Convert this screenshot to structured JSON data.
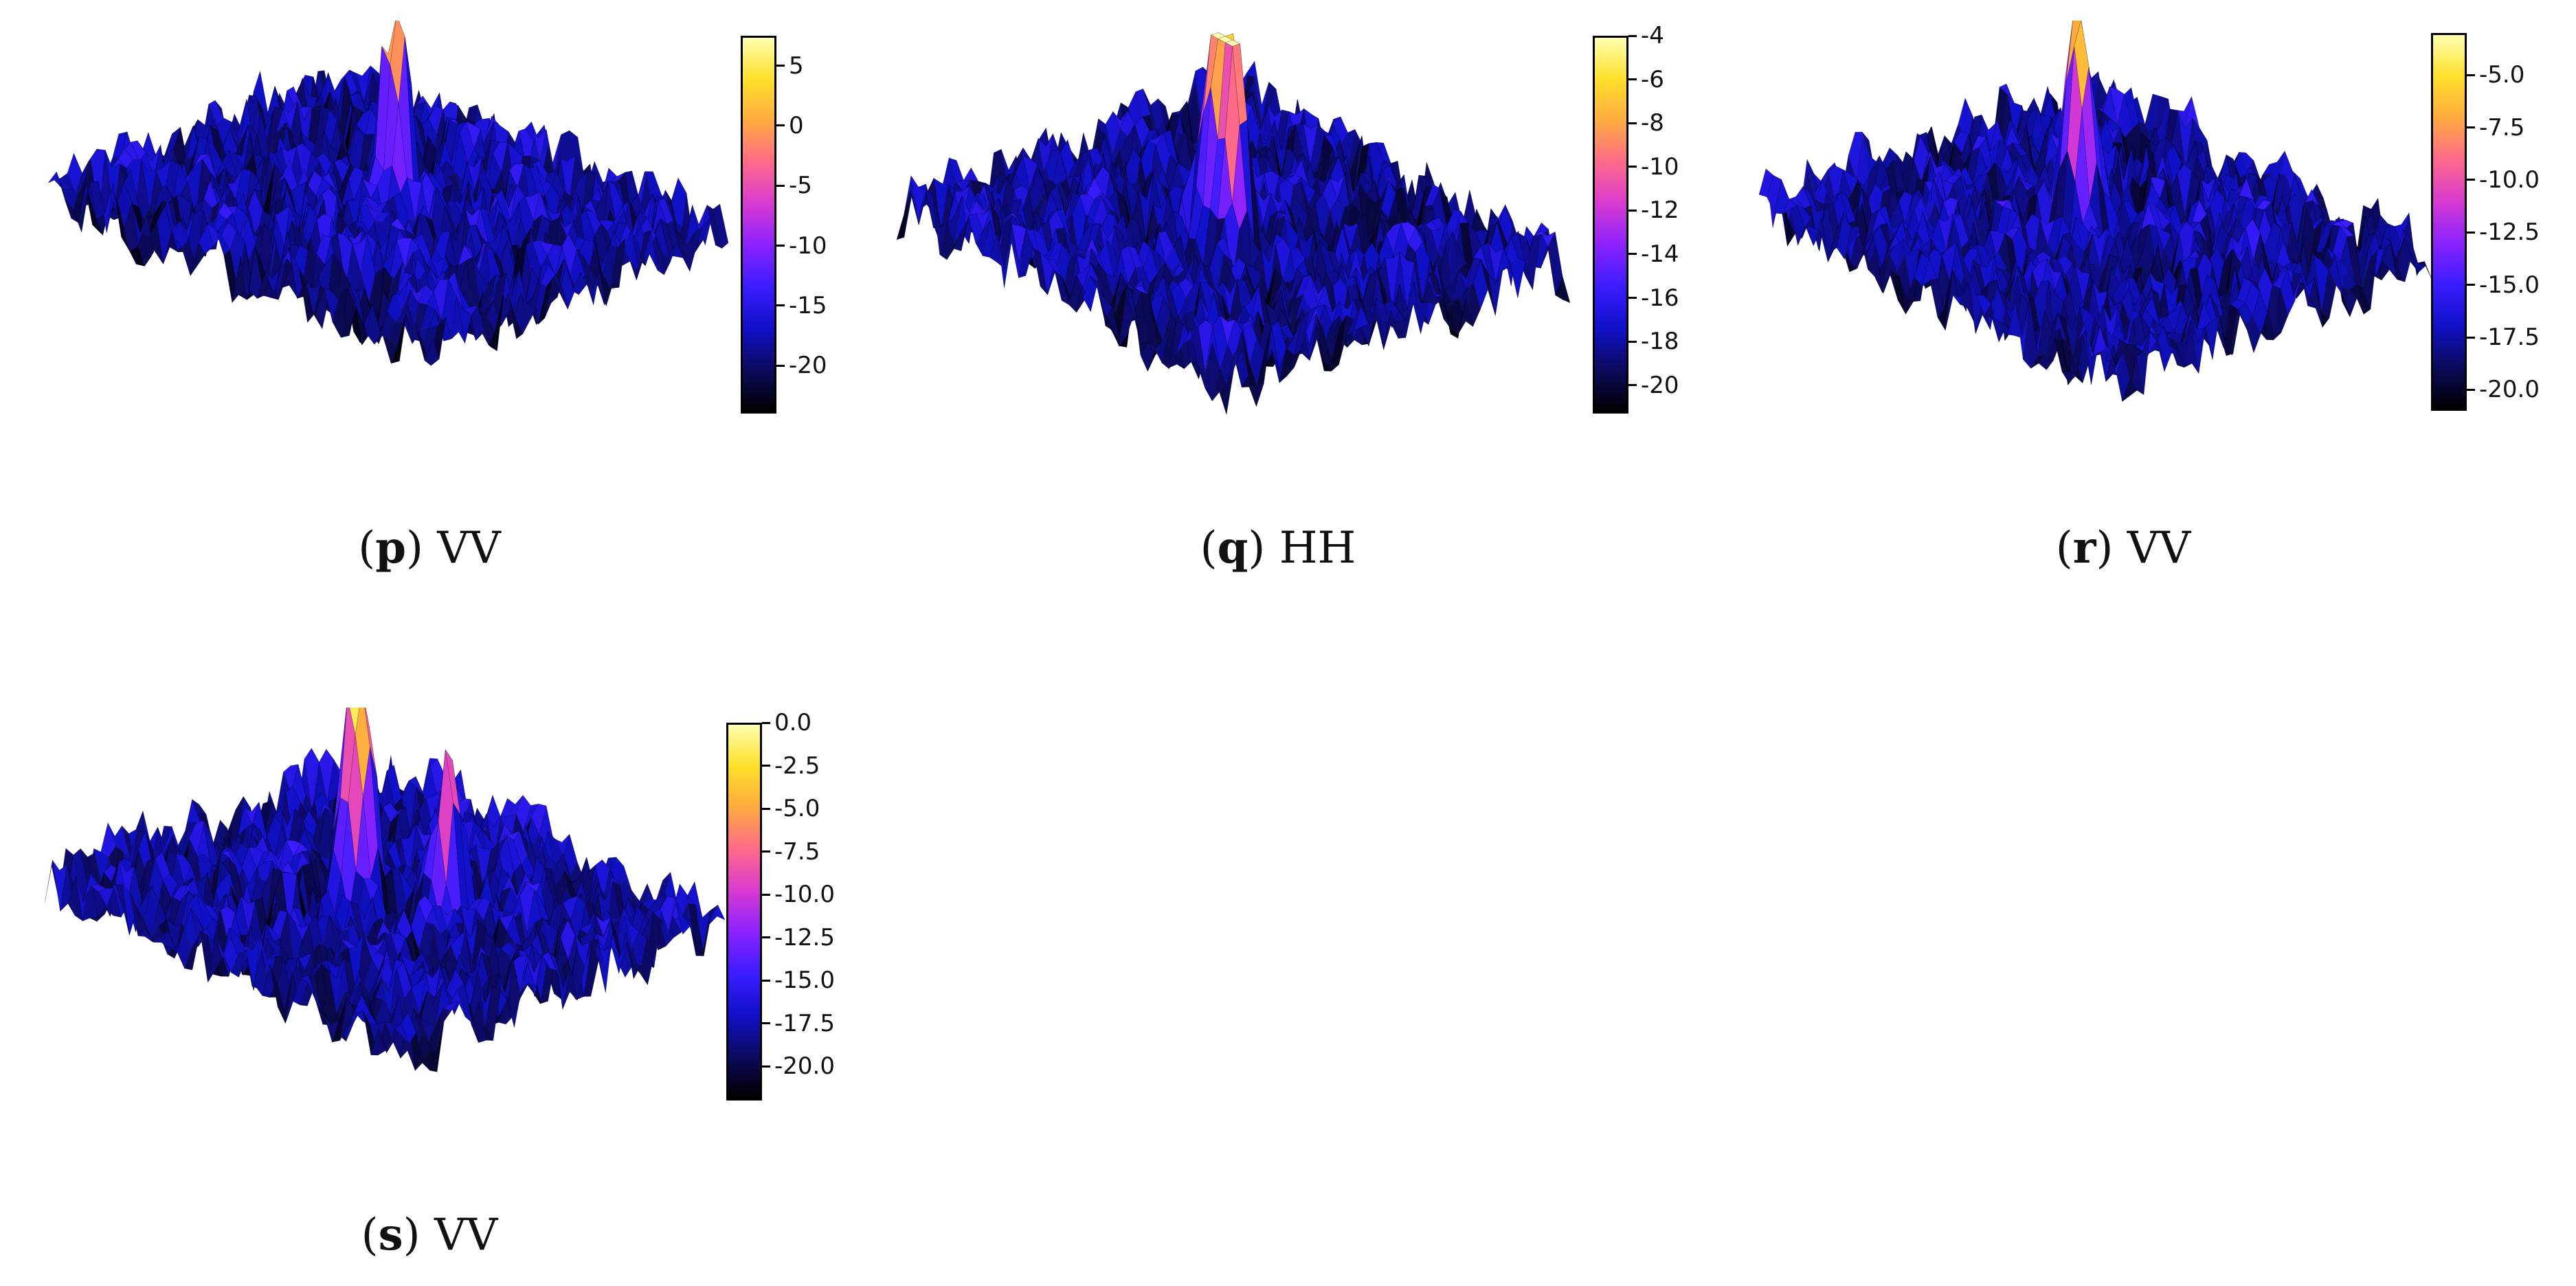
{
  "colormap": [
    "#000000",
    "#0c0a5c",
    "#1010c8",
    "#3a1cff",
    "#8a22ff",
    "#d83ad0",
    "#ff6a8a",
    "#ffaa40",
    "#ffe02a",
    "#ffffb0"
  ],
  "chart_data": [
    {
      "id": "p",
      "type": "surface3d",
      "caption_letter": "p",
      "caption_text": "VV",
      "colorbar": {
        "min": -24,
        "max": 7.5,
        "ticks": [
          -20,
          -15,
          -10,
          -5,
          0,
          5
        ],
        "tick_labels": [
          "-20",
          "-15",
          "-10",
          "-5",
          "0",
          "5"
        ]
      },
      "peaks": [
        {
          "x": 0.52,
          "y": 0.5,
          "height": 7.5
        }
      ]
    },
    {
      "id": "q",
      "type": "surface3d",
      "caption_letter": "q",
      "caption_text": "HH",
      "colorbar": {
        "min": -21.3,
        "max": -4,
        "ticks": [
          -20,
          -18,
          -16,
          -14,
          -12,
          -10,
          -8,
          -6,
          -4
        ],
        "tick_labels": [
          "-20",
          "-18",
          "-16",
          "-14",
          "-12",
          "-10",
          "-8",
          "-6",
          "-4"
        ]
      },
      "peaks": [
        {
          "x": 0.5,
          "y": 0.45,
          "height": -4
        },
        {
          "x": 0.55,
          "y": 0.45,
          "height": -4.2
        }
      ]
    },
    {
      "id": "r",
      "type": "surface3d",
      "caption_letter": "r",
      "caption_text": "VV",
      "colorbar": {
        "min": -21,
        "max": -3,
        "ticks": [
          -20,
          -17.5,
          -15,
          -12.5,
          -10,
          -7.5,
          -5
        ],
        "tick_labels": [
          "-20.0",
          "-17.5",
          "-15.0",
          "-12.5",
          "-10.0",
          "-7.5",
          "-5.0"
        ]
      },
      "peaks": [
        {
          "x": 0.47,
          "y": 0.48,
          "height": -3
        }
      ]
    },
    {
      "id": "s",
      "type": "surface3d",
      "caption_letter": "s",
      "caption_text": "VV",
      "colorbar": {
        "min": -22,
        "max": 0,
        "ticks": [
          -20,
          -17.5,
          -15,
          -12.5,
          -10,
          -7.5,
          -5,
          -2.5,
          0
        ],
        "tick_labels": [
          "-20.0",
          "-17.5",
          "-15.0",
          "-12.5",
          "-10.0",
          "-7.5",
          "-5.0",
          "-2.5",
          "0.0"
        ]
      },
      "peaks": [
        {
          "x": 0.45,
          "y": 0.47,
          "height": 0
        },
        {
          "x": 0.63,
          "y": 0.55,
          "height": -7
        }
      ]
    }
  ]
}
